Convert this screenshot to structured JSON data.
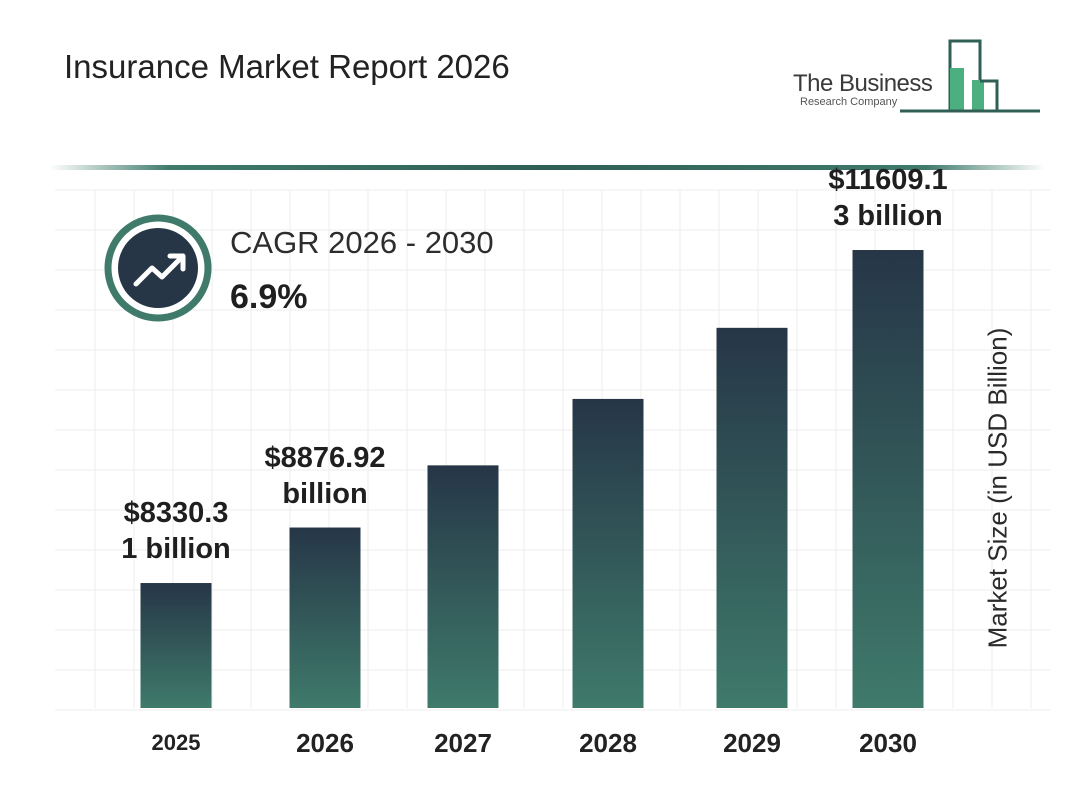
{
  "header": {
    "title": "Insurance Market Report 2026",
    "logo_name": "The Business",
    "logo_subtitle": "Research Company"
  },
  "cagr": {
    "label": "CAGR 2026 - 2030",
    "value": "6.9%",
    "icon": "trend-up-icon"
  },
  "colors": {
    "bar_top": "#263647",
    "bar_bottom": "#3f7a6b",
    "accent": "#3f7a6b",
    "logo_green": "#4caf7f"
  },
  "chart_data": {
    "type": "bar",
    "title": "",
    "xlabel": "",
    "ylabel": "Market Size (in USD Billion)",
    "categories": [
      "2025",
      "2026",
      "2027",
      "2028",
      "2029",
      "2030"
    ],
    "values": [
      8330.31,
      8876.92,
      9489,
      10143,
      10843,
      11609.13
    ],
    "ylim": [
      7100,
      12200
    ],
    "grid": true,
    "data_labels": [
      {
        "category": "2025",
        "lines": [
          "$8330.3",
          "1 billion"
        ]
      },
      {
        "category": "2026",
        "lines": [
          "$8876.92",
          "billion"
        ]
      },
      {
        "category": "2030",
        "lines": [
          "$11609.1",
          "3 billion"
        ]
      }
    ]
  }
}
